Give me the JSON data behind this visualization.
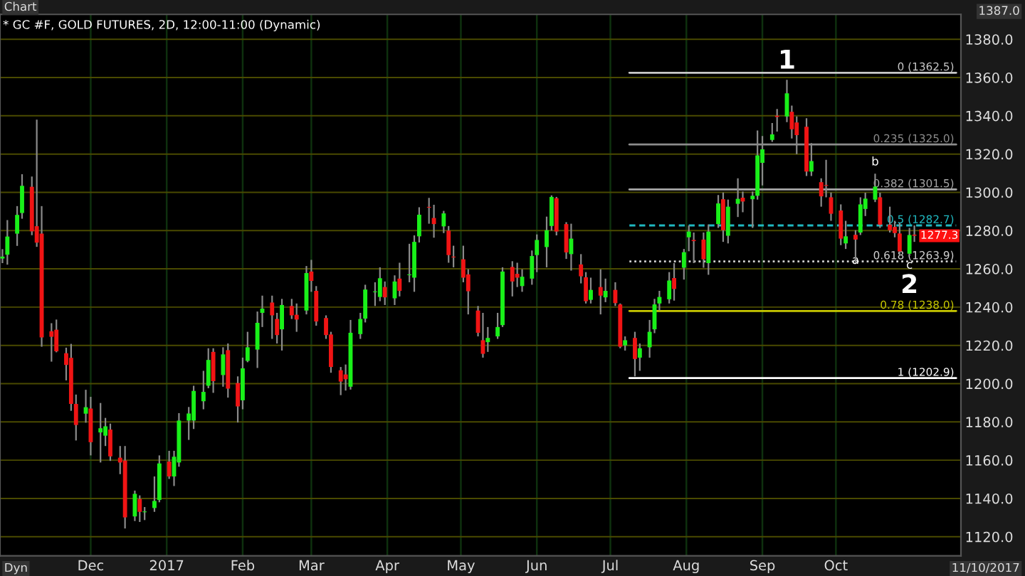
{
  "chart_data": {
    "type": "candlestick",
    "title": "* GC #F, GOLD FUTURES, 2D, 12:00-11:00 (Dynamic)",
    "x": [
      "2016-10-26",
      "2016-10-28",
      "2016-11-01",
      "2016-11-03",
      "2016-11-07",
      "2016-11-09",
      "2016-11-11",
      "2016-11-15",
      "2016-11-17",
      "2016-11-21",
      "2016-11-23",
      "2016-11-25",
      "2016-11-29",
      "2016-12-01",
      "2016-12-05",
      "2016-12-07",
      "2016-12-09",
      "2016-12-13",
      "2016-12-15",
      "2016-12-19",
      "2016-12-21",
      "2016-12-23",
      "2016-12-27",
      "2016-12-29",
      "2017-01-02",
      "2017-01-04",
      "2017-01-06",
      "2017-01-10",
      "2017-01-12",
      "2017-01-16",
      "2017-01-18",
      "2017-01-20",
      "2017-01-24",
      "2017-01-26",
      "2017-01-30",
      "2017-02-01",
      "2017-02-03",
      "2017-02-07",
      "2017-02-09",
      "2017-02-13",
      "2017-02-15",
      "2017-02-17",
      "2017-02-21",
      "2017-02-23",
      "2017-02-27",
      "2017-03-01",
      "2017-03-03",
      "2017-03-07",
      "2017-03-09",
      "2017-03-13",
      "2017-03-15",
      "2017-03-17",
      "2017-03-21",
      "2017-03-23",
      "2017-03-27",
      "2017-03-29",
      "2017-03-31",
      "2017-04-04",
      "2017-04-06",
      "2017-04-10",
      "2017-04-12",
      "2017-04-14",
      "2017-04-18",
      "2017-04-20",
      "2017-04-24",
      "2017-04-26",
      "2017-04-28",
      "2017-05-02",
      "2017-05-04",
      "2017-05-08",
      "2017-05-10",
      "2017-05-12",
      "2017-05-16",
      "2017-05-18",
      "2017-05-22",
      "2017-05-24",
      "2017-05-26",
      "2017-05-30",
      "2017-06-01",
      "2017-06-05",
      "2017-06-07",
      "2017-06-09",
      "2017-06-13",
      "2017-06-15",
      "2017-06-19",
      "2017-06-21",
      "2017-06-23",
      "2017-06-27",
      "2017-06-29",
      "2017-07-03",
      "2017-07-05",
      "2017-07-07",
      "2017-07-11",
      "2017-07-13",
      "2017-07-17",
      "2017-07-19",
      "2017-07-21",
      "2017-07-25",
      "2017-07-27",
      "2017-07-31",
      "2017-08-02",
      "2017-08-04",
      "2017-08-08",
      "2017-08-10",
      "2017-08-14",
      "2017-08-16",
      "2017-08-18",
      "2017-08-22",
      "2017-08-24",
      "2017-08-28",
      "2017-08-30",
      "2017-09-01",
      "2017-09-05",
      "2017-09-07",
      "2017-09-11",
      "2017-09-13",
      "2017-09-15",
      "2017-09-19",
      "2017-09-21",
      "2017-09-25",
      "2017-09-27",
      "2017-09-29",
      "2017-10-03",
      "2017-10-05",
      "2017-10-09",
      "2017-10-11",
      "2017-10-13",
      "2017-10-17",
      "2017-10-19",
      "2017-10-23",
      "2017-10-25",
      "2017-10-27",
      "2017-10-31",
      "2017-11-02"
    ],
    "ohlc": [
      [
        1265.4,
        1270.3,
        1263.0,
        1266.4
      ],
      [
        1267.4,
        1285.5,
        1262.2,
        1276.9
      ],
      [
        1278.4,
        1292.8,
        1272.0,
        1288.2
      ],
      [
        1289.2,
        1309.5,
        1286.2,
        1303.4
      ],
      [
        1302.9,
        1308.3,
        1277.6,
        1279.6
      ],
      [
        1282.3,
        1338.0,
        1271.5,
        1273.7
      ],
      [
        1278.4,
        1292.8,
        1219.3,
        1224.2
      ],
      [
        1227.4,
        1231.6,
        1211.5,
        1224.5
      ],
      [
        1228.2,
        1233.5,
        1216.4,
        1216.9
      ],
      [
        1215.9,
        1218.8,
        1201.7,
        1209.8
      ],
      [
        1213.5,
        1220.8,
        1185.8,
        1189.4
      ],
      [
        1189.4,
        1194.3,
        1170.3,
        1178.4
      ],
      [
        1184.3,
        1196.8,
        1179.6,
        1187.7
      ],
      [
        1187.0,
        1193.1,
        1162.5,
        1169.4
      ],
      [
        1174.5,
        1189.9,
        1158.8,
        1176.7
      ],
      [
        1172.8,
        1182.1,
        1167.4,
        1177.7
      ],
      [
        1176.0,
        1179.1,
        1159.6,
        1162.0
      ],
      [
        1161.3,
        1167.4,
        1152.7,
        1158.8
      ],
      [
        1159.8,
        1167.4,
        1124.3,
        1130.1
      ],
      [
        1130.6,
        1144.1,
        1128.2,
        1142.4
      ],
      [
        1139.7,
        1141.6,
        1127.7,
        1133.0
      ],
      [
        1133.0,
        1135.5,
        1128.7,
        1133.3
      ],
      [
        1135.0,
        1151.5,
        1133.0,
        1138.7
      ],
      [
        1139.2,
        1162.5,
        1138.0,
        1158.3
      ],
      [
        1159.3,
        1164.9,
        1150.2,
        1151.5
      ],
      [
        1151.5,
        1164.9,
        1146.5,
        1161.8
      ],
      [
        1158.8,
        1184.6,
        1156.6,
        1180.7
      ],
      [
        1180.7,
        1187.8,
        1170.6,
        1184.4
      ],
      [
        1180.7,
        1198.9,
        1176.3,
        1196.2
      ],
      [
        1190.8,
        1206.7,
        1186.6,
        1195.7
      ],
      [
        1198.9,
        1218.5,
        1197.6,
        1212.4
      ],
      [
        1216.6,
        1218.5,
        1195.2,
        1201.3
      ],
      [
        1204.5,
        1219.0,
        1198.4,
        1215.3
      ],
      [
        1217.5,
        1221.0,
        1192.7,
        1197.4
      ],
      [
        1200.3,
        1203.8,
        1179.7,
        1188.1
      ],
      [
        1191.3,
        1213.6,
        1186.6,
        1208.0
      ],
      [
        1211.9,
        1227.1,
        1211.2,
        1219.0
      ],
      [
        1217.8,
        1237.7,
        1208.2,
        1231.8
      ],
      [
        1237.0,
        1246.0,
        1229.6,
        1239.2
      ],
      [
        1242.4,
        1246.0,
        1223.4,
        1235.7
      ],
      [
        1233.8,
        1237.0,
        1221.0,
        1225.4
      ],
      [
        1228.4,
        1244.3,
        1217.3,
        1241.1
      ],
      [
        1240.6,
        1244.3,
        1233.8,
        1235.7
      ],
      [
        1236.0,
        1241.9,
        1227.1,
        1233.5
      ],
      [
        1238.2,
        1261.5,
        1236.2,
        1257.8
      ],
      [
        1258.6,
        1264.7,
        1248.0,
        1253.7
      ],
      [
        1248.5,
        1251.0,
        1230.3,
        1232.5
      ],
      [
        1234.3,
        1235.7,
        1223.4,
        1225.4
      ],
      [
        1225.7,
        1227.1,
        1205.7,
        1208.7
      ],
      [
        1207.0,
        1208.7,
        1194.0,
        1201.1
      ],
      [
        1204.8,
        1210.0,
        1196.4,
        1202.3
      ],
      [
        1198.4,
        1233.3,
        1196.9,
        1226.6
      ],
      [
        1225.9,
        1237.0,
        1223.4,
        1233.8
      ],
      [
        1234.0,
        1251.7,
        1232.0,
        1249.2
      ],
      [
        1248.0,
        1253.0,
        1240.6,
        1248.3
      ],
      [
        1245.3,
        1260.8,
        1243.1,
        1255.1
      ],
      [
        1250.5,
        1253.4,
        1241.1,
        1245.1
      ],
      [
        1244.6,
        1256.6,
        1241.1,
        1253.4
      ],
      [
        1254.9,
        1263.2,
        1245.6,
        1248.5
      ],
      [
        1256.9,
        1273.1,
        1253.0,
        1257.1
      ],
      [
        1255.4,
        1277.5,
        1248.0,
        1274.1
      ],
      [
        1277.0,
        1292.2,
        1273.8,
        1288.3
      ],
      [
        1292.4,
        1297.1,
        1283.6,
        1292.0
      ],
      [
        1286.6,
        1293.5,
        1276.3,
        1283.4
      ],
      [
        1282.2,
        1290.3,
        1278.7,
        1289.0
      ],
      [
        1280.0,
        1282.4,
        1263.2,
        1267.2
      ],
      [
        1266.2,
        1272.1,
        1260.8,
        1266.0
      ],
      [
        1265.0,
        1272.1,
        1253.0,
        1255.4
      ],
      [
        1257.1,
        1259.8,
        1236.2,
        1248.3
      ],
      [
        1238.2,
        1240.6,
        1224.7,
        1226.6
      ],
      [
        1222.7,
        1237.0,
        1213.6,
        1215.6
      ],
      [
        1221.7,
        1229.6,
        1216.6,
        1223.9
      ],
      [
        1224.7,
        1237.0,
        1223.4,
        1229.6
      ],
      [
        1230.6,
        1260.8,
        1229.6,
        1258.6
      ],
      [
        1261.0,
        1264.0,
        1245.6,
        1253.4
      ],
      [
        1257.4,
        1263.2,
        1250.5,
        1255.4
      ],
      [
        1251.0,
        1259.8,
        1248.0,
        1255.9
      ],
      [
        1254.9,
        1269.6,
        1251.7,
        1266.7
      ],
      [
        1267.2,
        1278.0,
        1258.3,
        1275.1
      ],
      [
        1271.4,
        1287.3,
        1260.8,
        1280.2
      ],
      [
        1282.4,
        1298.4,
        1280.0,
        1297.6
      ],
      [
        1296.9,
        1297.6,
        1277.5,
        1279.5
      ],
      [
        1283.4,
        1284.4,
        1265.2,
        1268.6
      ],
      [
        1267.7,
        1283.6,
        1259.1,
        1275.8
      ],
      [
        1262.3,
        1267.7,
        1252.4,
        1256.1
      ],
      [
        1255.6,
        1258.3,
        1241.9,
        1243.1
      ],
      [
        1243.8,
        1255.4,
        1241.9,
        1249.0
      ],
      [
        1250.5,
        1259.8,
        1236.2,
        1246.0
      ],
      [
        1245.1,
        1254.9,
        1242.6,
        1248.5
      ],
      [
        1249.0,
        1253.0,
        1240.6,
        1242.1
      ],
      [
        1241.4,
        1241.9,
        1218.5,
        1219.3
      ],
      [
        1220.0,
        1224.7,
        1217.3,
        1222.7
      ],
      [
        1223.9,
        1227.1,
        1203.8,
        1212.9
      ],
      [
        1213.6,
        1221.0,
        1206.7,
        1218.5
      ],
      [
        1219.0,
        1233.3,
        1213.6,
        1227.1
      ],
      [
        1228.4,
        1244.3,
        1226.4,
        1241.4
      ],
      [
        1241.9,
        1248.5,
        1238.2,
        1245.3
      ],
      [
        1244.1,
        1258.3,
        1241.9,
        1253.9
      ],
      [
        1255.2,
        1263.0,
        1243.4,
        1249.5
      ],
      [
        1260.6,
        1270.4,
        1254.4,
        1268.7
      ],
      [
        1276.5,
        1282.7,
        1269.2,
        1279.5
      ],
      [
        1275.1,
        1279.0,
        1263.0,
        1274.5
      ],
      [
        1275.3,
        1279.0,
        1260.6,
        1265.0
      ],
      [
        1263.0,
        1283.2,
        1256.9,
        1279.5
      ],
      [
        1283.4,
        1298.6,
        1281.4,
        1294.2
      ],
      [
        1296.4,
        1299.9,
        1274.1,
        1280.2
      ],
      [
        1277.3,
        1296.2,
        1273.3,
        1292.5
      ],
      [
        1294.0,
        1307.3,
        1287.1,
        1296.6
      ],
      [
        1297.2,
        1300.4,
        1289.6,
        1295.2
      ],
      [
        1296.4,
        1300.4,
        1281.4,
        1298.2
      ],
      [
        1298.2,
        1332.3,
        1296.2,
        1319.3
      ],
      [
        1315.4,
        1329.4,
        1303.6,
        1322.5
      ],
      [
        1327.4,
        1336.2,
        1326.4,
        1330.3
      ],
      [
        1340.0,
        1343.6,
        1331.8,
        1339.4
      ],
      [
        1339.7,
        1358.8,
        1336.7,
        1351.7
      ],
      [
        1342.1,
        1345.3,
        1328.1,
        1333.0
      ],
      [
        1336.5,
        1339.7,
        1320.0,
        1329.9
      ],
      [
        1334.3,
        1338.7,
        1308.5,
        1310.9
      ],
      [
        1310.9,
        1325.7,
        1308.5,
        1316.3
      ],
      [
        1305.3,
        1307.3,
        1292.5,
        1297.9
      ],
      [
        1303.6,
        1317.0,
        1297.4,
        1303.2
      ],
      [
        1297.4,
        1299.9,
        1285.1,
        1288.8
      ],
      [
        1290.5,
        1293.7,
        1272.4,
        1275.8
      ],
      [
        1273.3,
        1285.1,
        1270.4,
        1277.0
      ],
      [
        1277.8,
        1280.2,
        1263.0,
        1275.3
      ],
      [
        1279.0,
        1297.4,
        1277.7,
        1293.7
      ],
      [
        1291.3,
        1299.8,
        1287.6,
        1296.7
      ],
      [
        1296.2,
        1309.7,
        1294.9,
        1303.0
      ],
      [
        1297.4,
        1299.8,
        1281.4,
        1283.1
      ],
      [
        1283.1,
        1292.5,
        1279.0,
        1280.2
      ],
      [
        1281.9,
        1285.1,
        1276.5,
        1278.7
      ],
      [
        1278.5,
        1283.9,
        1267.9,
        1269.1
      ],
      [
        1267.9,
        1281.4,
        1266.7,
        1277.7
      ],
      [
        1277.9,
        1282.7,
        1274.1,
        1277.3
      ]
    ],
    "xlim": [
      "2016-10-25",
      "2017-11-21"
    ],
    "xticks": [
      {
        "value": "2016-12-01",
        "label": "Dec"
      },
      {
        "value": "2017-01-01",
        "label": "2017"
      },
      {
        "value": "2017-02-01",
        "label": "Feb"
      },
      {
        "value": "2017-03-01",
        "label": "Mar"
      },
      {
        "value": "2017-04-01",
        "label": "Apr"
      },
      {
        "value": "2017-05-01",
        "label": "May"
      },
      {
        "value": "2017-06-01",
        "label": "Jun"
      },
      {
        "value": "2017-07-01",
        "label": "Jul"
      },
      {
        "value": "2017-08-01",
        "label": "Aug"
      },
      {
        "value": "2017-09-01",
        "label": "Sep"
      },
      {
        "value": "2017-10-01",
        "label": "Oct"
      }
    ],
    "ylim": [
      1110,
      1393
    ],
    "yticks": [
      {
        "value": 1120,
        "label": "1120.0"
      },
      {
        "value": 1140,
        "label": "1140.0"
      },
      {
        "value": 1160,
        "label": "1160.0"
      },
      {
        "value": 1180,
        "label": "1180.0"
      },
      {
        "value": 1200,
        "label": "1200.0"
      },
      {
        "value": 1220,
        "label": "1220.0"
      },
      {
        "value": 1240,
        "label": "1240.0"
      },
      {
        "value": 1260,
        "label": "1260.0"
      },
      {
        "value": 1280,
        "label": "1280.0"
      },
      {
        "value": 1300,
        "label": "1300.0"
      },
      {
        "value": 1320,
        "label": "1320.0"
      },
      {
        "value": 1340,
        "label": "1340.0"
      },
      {
        "value": 1360,
        "label": "1360.0"
      },
      {
        "value": 1380,
        "label": "1380.0"
      }
    ],
    "grid": true,
    "ref_lines": [
      {
        "axis": "y",
        "value": 1362.5,
        "label": "0 (1362.5)",
        "color": "#c8c8c8",
        "line_style": "solid"
      },
      {
        "axis": "y",
        "value": 1325.0,
        "label": "0.235 (1325.0)",
        "color": "#8c8c8c",
        "line_style": "solid"
      },
      {
        "axis": "y",
        "value": 1301.5,
        "label": "0.382 (1301.5)",
        "color": "#a8a8a8",
        "line_style": "solid"
      },
      {
        "axis": "y",
        "value": 1282.7,
        "label": "0.5 (1282.7)",
        "color": "#20b8c0",
        "line_style": "dashed"
      },
      {
        "axis": "y",
        "value": 1263.9,
        "label": "0.618 (1263.9)",
        "color": "#d0d0d0",
        "line_style": "dotted"
      },
      {
        "axis": "y",
        "value": 1238.0,
        "label": "0.78 (1238.0)",
        "color": "#c8c800",
        "line_style": "solid"
      },
      {
        "axis": "y",
        "value": 1202.9,
        "label": "1 (1202.9)",
        "color": "#ffffff",
        "line_style": "solid"
      }
    ],
    "annotations": [
      "Chart",
      "1387.0",
      "Dyn",
      "11/10/2017",
      {
        "text": "1",
        "x": "2017-09-11",
        "y": 1358.8
      },
      {
        "text": "a",
        "x": "2017-10-09",
        "y": 1270.4
      },
      {
        "text": "b",
        "x": "2017-10-17",
        "y": 1309.7
      },
      {
        "text": "c",
        "x": "2017-10-31",
        "y": 1267.9
      },
      {
        "text": "2",
        "x": "2017-10-31",
        "y": 1267.9
      },
      {
        "text": "1277.3",
        "x": "2017-11-02",
        "y": 1277.3
      }
    ]
  }
}
